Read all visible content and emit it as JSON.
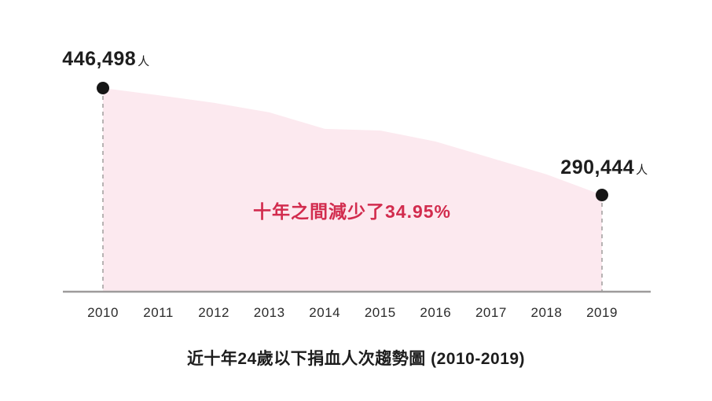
{
  "page": {
    "background": "#ffffff"
  },
  "chart_data": {
    "type": "area",
    "title": "近十年24歲以下捐血人次趨勢圖 (2010-2019)",
    "categories": [
      "2010",
      "2011",
      "2012",
      "2013",
      "2014",
      "2015",
      "2016",
      "2017",
      "2018",
      "2019"
    ],
    "values": [
      446498,
      436000,
      425000,
      411000,
      387000,
      384500,
      368500,
      344500,
      320500,
      290444
    ],
    "unit": "人",
    "xlabel": "",
    "ylabel": "",
    "ylim": [
      149300,
      446498
    ],
    "grid": false,
    "legend": false,
    "annotations": {
      "start_point_label": {
        "value": "446,498",
        "unit": "人"
      },
      "end_point_label": {
        "value": "290,444",
        "unit": "人"
      },
      "center_note": "十年之間減少了34.95%"
    }
  },
  "colors": {
    "area_fill": "#fce9ef",
    "annotation_red": "#d22c4e",
    "point_black": "#161616",
    "dashed_line_gray": "#b7b3b3",
    "axis_gray": "#9e9b9b",
    "label_dark": "#1d1d1d",
    "tick_dark": "#2b2b2b"
  }
}
